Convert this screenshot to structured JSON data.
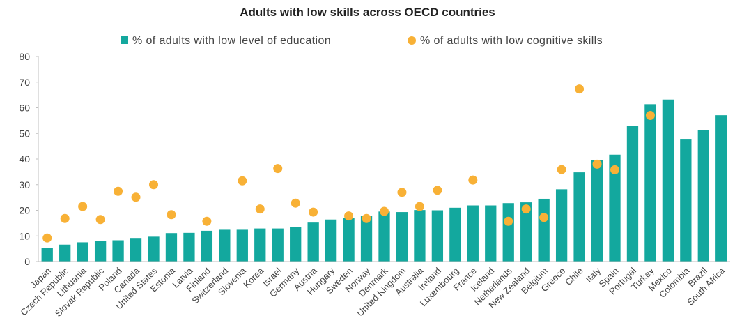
{
  "chart_data": {
    "type": "bar",
    "title": "Adults with low skills across OECD countries",
    "categories": [
      "Japan",
      "Czech Republic",
      "Lithuania",
      "Slovak Republic",
      "Poland",
      "Canada",
      "United States",
      "Estonia",
      "Latvia",
      "Finland",
      "Switzerland",
      "Slovenia",
      "Korea",
      "Israel",
      "Germany",
      "Austria",
      "Hungary",
      "Sweden",
      "Norway",
      "Denmark",
      "United Kingdom",
      "Australia",
      "Ireland",
      "Luxembourg",
      "France",
      "Iceland",
      "Netherlands",
      "New Zealand",
      "Belgium",
      "Greece",
      "Chile",
      "Italy",
      "Spain",
      "Portugal",
      "Turkey",
      "Mexico",
      "Colombia",
      "Brazil",
      "South Africa"
    ],
    "series": [
      {
        "name": "% of adults with low level of education",
        "kind": "bar",
        "color": "#13A89E",
        "values": [
          5.2,
          6.6,
          7.5,
          8.0,
          8.3,
          9.2,
          9.7,
          11.1,
          11.2,
          12.0,
          12.4,
          12.4,
          12.9,
          12.9,
          13.4,
          15.2,
          16.4,
          17.0,
          17.7,
          19.5,
          19.3,
          20.1,
          20.0,
          21.0,
          21.9,
          21.9,
          22.8,
          23.1,
          24.5,
          28.2,
          34.8,
          39.7,
          41.7,
          53.0,
          61.4,
          63.2,
          47.6,
          51.2,
          57.1
        ]
      },
      {
        "name": "% of adults with low cognitive skills",
        "kind": "dot",
        "color": "#F8B136",
        "values": [
          9.2,
          16.8,
          21.5,
          16.4,
          27.4,
          25.1,
          30.0,
          18.3,
          null,
          15.7,
          null,
          31.5,
          20.5,
          36.3,
          22.8,
          19.3,
          null,
          17.8,
          16.8,
          19.6,
          27.0,
          21.5,
          27.8,
          null,
          31.8,
          null,
          15.7,
          20.5,
          17.2,
          35.9,
          67.3,
          38.0,
          35.8,
          null,
          57.0,
          null,
          null,
          null,
          null
        ]
      }
    ],
    "ylim": [
      0,
      80
    ],
    "yticks": [
      0,
      10,
      20,
      30,
      40,
      50,
      60,
      70,
      80
    ],
    "xlabel": "",
    "ylabel": "",
    "legend_position": "top",
    "grid": false
  }
}
